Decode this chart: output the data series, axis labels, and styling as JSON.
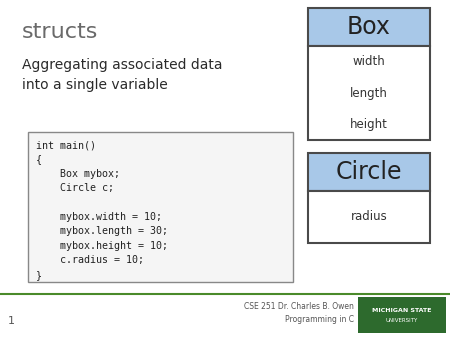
{
  "title": "structs",
  "subtitle": "Aggregating associated data\ninto a single variable",
  "code_text": "int main()\n{\n    Box mybox;\n    Circle c;\n\n    mybox.width = 10;\n    mybox.length = 30;\n    mybox.height = 10;\n    c.radius = 10;\n}",
  "box_label": "Box",
  "box_fields": [
    "width",
    "length",
    "height"
  ],
  "circle_label": "Circle",
  "circle_fields": [
    "radius"
  ],
  "header_color": "#a8c8e8",
  "box_border_color": "#4a4a4a",
  "bg_color": "#ffffff",
  "title_color": "#6a6a6a",
  "subtitle_color": "#2a2a2a",
  "code_border_color": "#888888",
  "footer_text": "CSE 251 Dr. Charles B. Owen\nProgramming in C",
  "footer_bg": "#2d6a2d",
  "footer_line_color": "#4a8a2a",
  "slide_number": "1",
  "msu_line1": "MICHIGAN STATE",
  "msu_line2": "UNIVERSITY"
}
